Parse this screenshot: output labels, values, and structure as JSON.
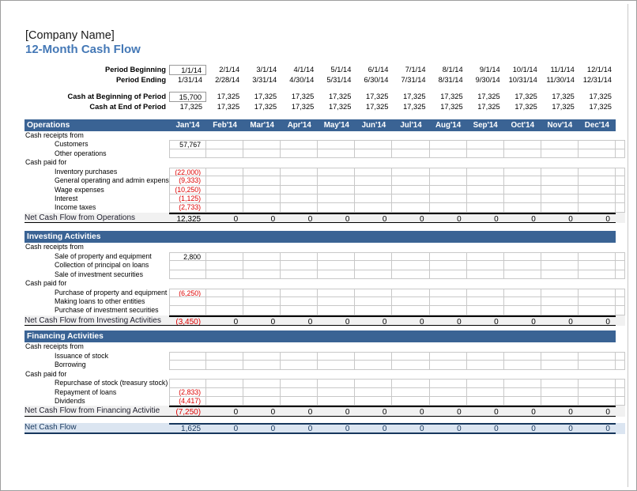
{
  "page": {
    "company": "[Company Name]",
    "title": "12-Month Cash Flow"
  },
  "colors": {
    "header_bg": "#3A6394",
    "title_blue": "#4478B6",
    "negative_red": "#dd0000",
    "net_row_bg": "#f1f1f1",
    "total_row_bg": "#dbe5f1",
    "navy": "#17375d"
  },
  "months": [
    "Jan'14",
    "Feb'14",
    "Mar'14",
    "Apr'14",
    "May'14",
    "Jun'14",
    "Jul'14",
    "Aug'14",
    "Sep'14",
    "Oct'14",
    "Nov'14",
    "Dec'14"
  ],
  "top_rows": [
    {
      "label": "Period Beginning",
      "input_first": true,
      "gap_before": false,
      "values": [
        "1/1/14",
        "2/1/14",
        "3/1/14",
        "4/1/14",
        "5/1/14",
        "6/1/14",
        "7/1/14",
        "8/1/14",
        "9/1/14",
        "10/1/14",
        "11/1/14",
        "12/1/14"
      ]
    },
    {
      "label": "Period Ending",
      "input_first": false,
      "gap_before": false,
      "values": [
        "1/31/14",
        "2/28/14",
        "3/31/14",
        "4/30/14",
        "5/31/14",
        "6/30/14",
        "7/31/14",
        "8/31/14",
        "9/30/14",
        "10/31/14",
        "11/30/14",
        "12/31/14"
      ]
    },
    {
      "label": "Cash at Beginning of Period",
      "input_first": true,
      "gap_before": true,
      "values": [
        "15,700",
        "17,325",
        "17,325",
        "17,325",
        "17,325",
        "17,325",
        "17,325",
        "17,325",
        "17,325",
        "17,325",
        "17,325",
        "17,325"
      ]
    },
    {
      "label": "Cash at End of Period",
      "input_first": false,
      "gap_before": false,
      "values": [
        "17,325",
        "17,325",
        "17,325",
        "17,325",
        "17,325",
        "17,325",
        "17,325",
        "17,325",
        "17,325",
        "17,325",
        "17,325",
        "17,325"
      ]
    }
  ],
  "sections": [
    {
      "title": "Operations",
      "slug": "operations",
      "show_months": true,
      "rows": [
        {
          "type": "category",
          "label": "Cash receipts from"
        },
        {
          "type": "detail",
          "label": "Customers",
          "red": false,
          "values": [
            "57,767",
            "",
            "",
            "",
            "",
            "",
            "",
            "",
            "",
            "",
            "",
            ""
          ]
        },
        {
          "type": "detail",
          "label": "Other operations",
          "red": false,
          "values": [
            "",
            "",
            "",
            "",
            "",
            "",
            "",
            "",
            "",
            "",
            "",
            ""
          ]
        },
        {
          "type": "category",
          "label": "Cash paid for"
        },
        {
          "type": "detail",
          "label": "Inventory purchases",
          "red": true,
          "values": [
            "(22,000)",
            "",
            "",
            "",
            "",
            "",
            "",
            "",
            "",
            "",
            "",
            ""
          ]
        },
        {
          "type": "detail",
          "label": "General operating and admin expenses",
          "red": true,
          "values": [
            "(9,333)",
            "",
            "",
            "",
            "",
            "",
            "",
            "",
            "",
            "",
            "",
            ""
          ]
        },
        {
          "type": "detail",
          "label": "Wage expenses",
          "red": true,
          "values": [
            "(10,250)",
            "",
            "",
            "",
            "",
            "",
            "",
            "",
            "",
            "",
            "",
            ""
          ]
        },
        {
          "type": "detail",
          "label": "Interest",
          "red": true,
          "values": [
            "(1,125)",
            "",
            "",
            "",
            "",
            "",
            "",
            "",
            "",
            "",
            "",
            ""
          ]
        },
        {
          "type": "detail",
          "label": "Income taxes",
          "red": true,
          "values": [
            "(2,733)",
            "",
            "",
            "",
            "",
            "",
            "",
            "",
            "",
            "",
            "",
            ""
          ]
        }
      ],
      "net": {
        "label": "Net Cash Flow from Operations",
        "red_first": false,
        "values": [
          "12,325",
          "0",
          "0",
          "0",
          "0",
          "0",
          "0",
          "0",
          "0",
          "0",
          "0",
          "0"
        ]
      }
    },
    {
      "title": "Investing Activities",
      "slug": "investing",
      "show_months": false,
      "rows": [
        {
          "type": "category",
          "label": "Cash receipts from"
        },
        {
          "type": "detail",
          "label": "Sale of property and equipment",
          "red": false,
          "values": [
            "2,800",
            "",
            "",
            "",
            "",
            "",
            "",
            "",
            "",
            "",
            "",
            ""
          ]
        },
        {
          "type": "detail",
          "label": "Collection of principal on loans",
          "red": false,
          "values": [
            "",
            "",
            "",
            "",
            "",
            "",
            "",
            "",
            "",
            "",
            "",
            ""
          ]
        },
        {
          "type": "detail",
          "label": "Sale of investment securities",
          "red": false,
          "values": [
            "",
            "",
            "",
            "",
            "",
            "",
            "",
            "",
            "",
            "",
            "",
            ""
          ]
        },
        {
          "type": "category",
          "label": "Cash paid for"
        },
        {
          "type": "detail",
          "label": "Purchase of property and equipment",
          "red": true,
          "values": [
            "(6,250)",
            "",
            "",
            "",
            "",
            "",
            "",
            "",
            "",
            "",
            "",
            ""
          ]
        },
        {
          "type": "detail",
          "label": "Making loans to other entities",
          "red": false,
          "values": [
            "",
            "",
            "",
            "",
            "",
            "",
            "",
            "",
            "",
            "",
            "",
            ""
          ]
        },
        {
          "type": "detail",
          "label": "Purchase of investment securities",
          "red": false,
          "values": [
            "",
            "",
            "",
            "",
            "",
            "",
            "",
            "",
            "",
            "",
            "",
            ""
          ]
        }
      ],
      "net": {
        "label": "Net Cash Flow from Investing Activities",
        "red_first": true,
        "values": [
          "(3,450)",
          "0",
          "0",
          "0",
          "0",
          "0",
          "0",
          "0",
          "0",
          "0",
          "0",
          "0"
        ]
      }
    },
    {
      "title": "Financing Activities",
      "slug": "financing",
      "show_months": false,
      "rows": [
        {
          "type": "category",
          "label": "Cash receipts from"
        },
        {
          "type": "detail",
          "label": "Issuance of stock",
          "red": false,
          "values": [
            "",
            "",
            "",
            "",
            "",
            "",
            "",
            "",
            "",
            "",
            "",
            ""
          ]
        },
        {
          "type": "detail",
          "label": "Borrowing",
          "red": false,
          "values": [
            "",
            "",
            "",
            "",
            "",
            "",
            "",
            "",
            "",
            "",
            "",
            ""
          ]
        },
        {
          "type": "category",
          "label": "Cash paid for"
        },
        {
          "type": "detail",
          "label": "Repurchase of stock (treasury stock)",
          "red": false,
          "values": [
            "",
            "",
            "",
            "",
            "",
            "",
            "",
            "",
            "",
            "",
            "",
            ""
          ]
        },
        {
          "type": "detail",
          "label": "Repayment of loans",
          "red": true,
          "values": [
            "(2,833)",
            "",
            "",
            "",
            "",
            "",
            "",
            "",
            "",
            "",
            "",
            ""
          ]
        },
        {
          "type": "detail",
          "label": "Dividends",
          "red": true,
          "values": [
            "(4,417)",
            "",
            "",
            "",
            "",
            "",
            "",
            "",
            "",
            "",
            "",
            ""
          ]
        }
      ],
      "net": {
        "label": "Net Cash Flow from Financing Activitie",
        "red_first": true,
        "values": [
          "(7,250)",
          "0",
          "0",
          "0",
          "0",
          "0",
          "0",
          "0",
          "0",
          "0",
          "0",
          "0"
        ]
      }
    }
  ],
  "total": {
    "label": "Net Cash Flow",
    "values": [
      "1,625",
      "0",
      "0",
      "0",
      "0",
      "0",
      "0",
      "0",
      "0",
      "0",
      "0",
      "0"
    ]
  }
}
